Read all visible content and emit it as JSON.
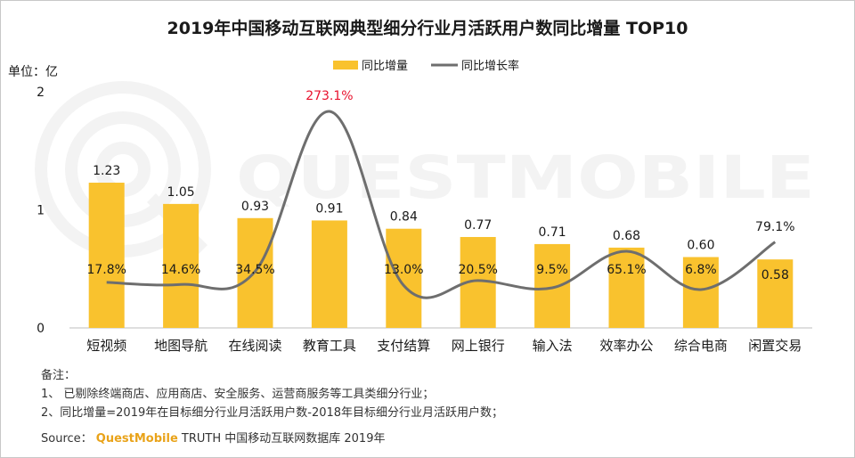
{
  "chart_data": {
    "type": "bar",
    "title": "2019年中国移动互联网典型细分行业月活跃用户数同比增量 TOP10",
    "ylabel": "单位：亿",
    "ylim": [
      0,
      2
    ],
    "yticks": [
      "0",
      "1",
      "2"
    ],
    "categories": [
      "短视频",
      "地图导航",
      "在线阅读",
      "教育工具",
      "支付结算",
      "网上银行",
      "输入法",
      "效率办公",
      "综合电商",
      "闲置交易"
    ],
    "series": [
      {
        "name": "同比增量",
        "type": "bar",
        "values": [
          1.23,
          1.05,
          0.93,
          0.91,
          0.84,
          0.77,
          0.71,
          0.68,
          0.6,
          0.58
        ],
        "labels": [
          "1.23",
          "1.05",
          "0.93",
          "0.91",
          "0.84",
          "0.77",
          "0.71",
          "0.68",
          "0.60",
          "0.58"
        ]
      },
      {
        "name": "同比增长率",
        "type": "line",
        "values": [
          17.8,
          14.6,
          34.5,
          273.1,
          13.0,
          20.5,
          9.5,
          65.1,
          6.8,
          79.1
        ],
        "labels": [
          "17.8%",
          "14.6%",
          "34.5%",
          "273.1%",
          "13.0%",
          "20.5%",
          "9.5%",
          "65.1%",
          "6.8%",
          "79.1%"
        ]
      }
    ],
    "legend_position": "top-center",
    "highlight_label": "273.1%",
    "colors": {
      "bar": "#f9c22e",
      "line": "#6e6e6e",
      "highlight": "#e8122d",
      "text": "#1a1a1a",
      "axis": "#bfbfbf",
      "watermark": "#f3f3f3"
    },
    "watermark": "QUESTMOBILE"
  },
  "notes": {
    "heading": "备注：",
    "items": [
      "1、 已剔除终端商店、应用商店、安全服务、运营商服务等工具类细分行业；",
      "2、同比增量=2019年在目标细分行业月活跃用户数-2018年目标细分行业月活跃用户数；"
    ]
  },
  "source": {
    "prefix": "Source：",
    "brand": "QuestMobile",
    "text": "TRUTH 中国移动互联网数据库 2019年"
  }
}
